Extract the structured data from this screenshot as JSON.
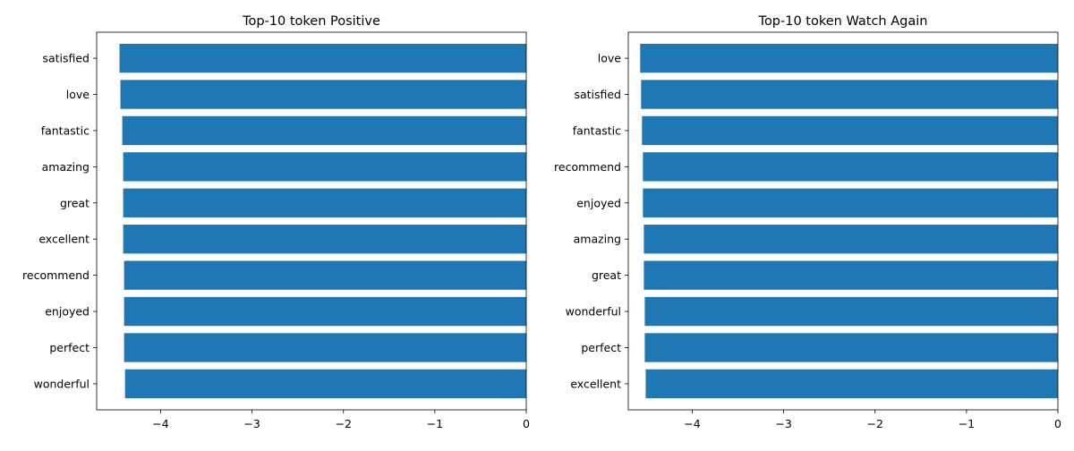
{
  "chart_data": [
    {
      "type": "bar",
      "orientation": "horizontal",
      "title": "Top-10 token Positive",
      "xlabel": "",
      "ylabel": "",
      "xlim": [
        -4.7,
        0
      ],
      "xticks": [
        -4,
        -3,
        -2,
        -1,
        0
      ],
      "xtick_labels": [
        "−4",
        "−3",
        "−2",
        "−1",
        "0"
      ],
      "grid": false,
      "color": "#1f77b4",
      "categories": [
        "satisfied",
        "love",
        "fantastic",
        "amazing",
        "great",
        "excellent",
        "recommend",
        "enjoyed",
        "perfect",
        "wonderful"
      ],
      "values": [
        -4.45,
        -4.44,
        -4.42,
        -4.41,
        -4.41,
        -4.41,
        -4.4,
        -4.4,
        -4.4,
        -4.39
      ]
    },
    {
      "type": "bar",
      "orientation": "horizontal",
      "title": "Top-10 token Watch Again",
      "xlabel": "",
      "ylabel": "",
      "xlim": [
        -4.7,
        0
      ],
      "xticks": [
        -4,
        -3,
        -2,
        -1,
        0
      ],
      "xtick_labels": [
        "−4",
        "−3",
        "−2",
        "−1",
        "0"
      ],
      "grid": false,
      "color": "#1f77b4",
      "categories": [
        "love",
        "satisfied",
        "fantastic",
        "recommend",
        "enjoyed",
        "amazing",
        "great",
        "wonderful",
        "perfect",
        "excellent"
      ],
      "values": [
        -4.57,
        -4.56,
        -4.55,
        -4.54,
        -4.54,
        -4.53,
        -4.53,
        -4.52,
        -4.52,
        -4.51
      ]
    }
  ]
}
